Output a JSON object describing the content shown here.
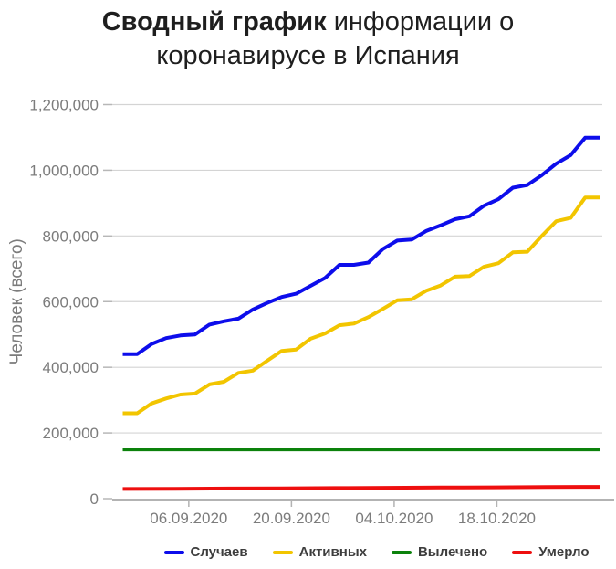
{
  "title": {
    "bold": "Сводный график",
    "rest": "информации о коронавирусе в Испания"
  },
  "chart_data": {
    "type": "line",
    "title": "Сводный график информации о коронавирусе в Испания",
    "xlabel": "",
    "ylabel": "Человек (всего)",
    "ylim": [
      0,
      1200000
    ],
    "grid": true,
    "legend_position": "bottom",
    "y_ticks": [
      {
        "value": 0,
        "label": "0"
      },
      {
        "value": 200000,
        "label": "200,000"
      },
      {
        "value": 400000,
        "label": "400,000"
      },
      {
        "value": 600000,
        "label": "600,000"
      },
      {
        "value": 800000,
        "label": "800,000"
      },
      {
        "value": 1000000,
        "label": "1,000,000"
      },
      {
        "value": 1200000,
        "label": "1,200,000"
      }
    ],
    "x_range_days": 65,
    "x_ticks": [
      {
        "day": 9,
        "label": "06.09.2020"
      },
      {
        "day": 23,
        "label": "20.09.2020"
      },
      {
        "day": 37,
        "label": "04.10.2020"
      },
      {
        "day": 51,
        "label": "18.10.2020"
      }
    ],
    "series": [
      {
        "key": "cases",
        "name": "Случаев",
        "color": "#0d0deb",
        "values": [
          440000,
          440000,
          471000,
          489000,
          497000,
          500000,
          530000,
          540000,
          548000,
          576000,
          596000,
          614000,
          624000,
          648000,
          672000,
          712000,
          712000,
          719000,
          760000,
          786000,
          789000,
          815000,
          832000,
          851000,
          860000,
          892000,
          912000,
          947000,
          955000,
          985000,
          1020000,
          1046000,
          1099000,
          1099000
        ]
      },
      {
        "key": "active",
        "name": "Активных",
        "color": "#f2c500",
        "values": [
          260000,
          260000,
          290000,
          305000,
          317000,
          320000,
          348000,
          356000,
          383000,
          390000,
          420000,
          450000,
          454000,
          487000,
          503000,
          528000,
          533000,
          553000,
          578000,
          604000,
          607000,
          633000,
          649000,
          676000,
          678000,
          706000,
          717000,
          750000,
          752000,
          800000,
          845000,
          855000,
          917000,
          917000
        ]
      },
      {
        "key": "recovered",
        "name": "Вылечено",
        "color": "#0c820c",
        "values": [
          150000,
          150000
        ]
      },
      {
        "key": "deaths",
        "name": "Умерло",
        "color": "#ee0f0f",
        "values": [
          29500,
          30000,
          30800,
          31500,
          32200,
          33000,
          33800,
          34500,
          35300,
          36000
        ]
      }
    ]
  }
}
